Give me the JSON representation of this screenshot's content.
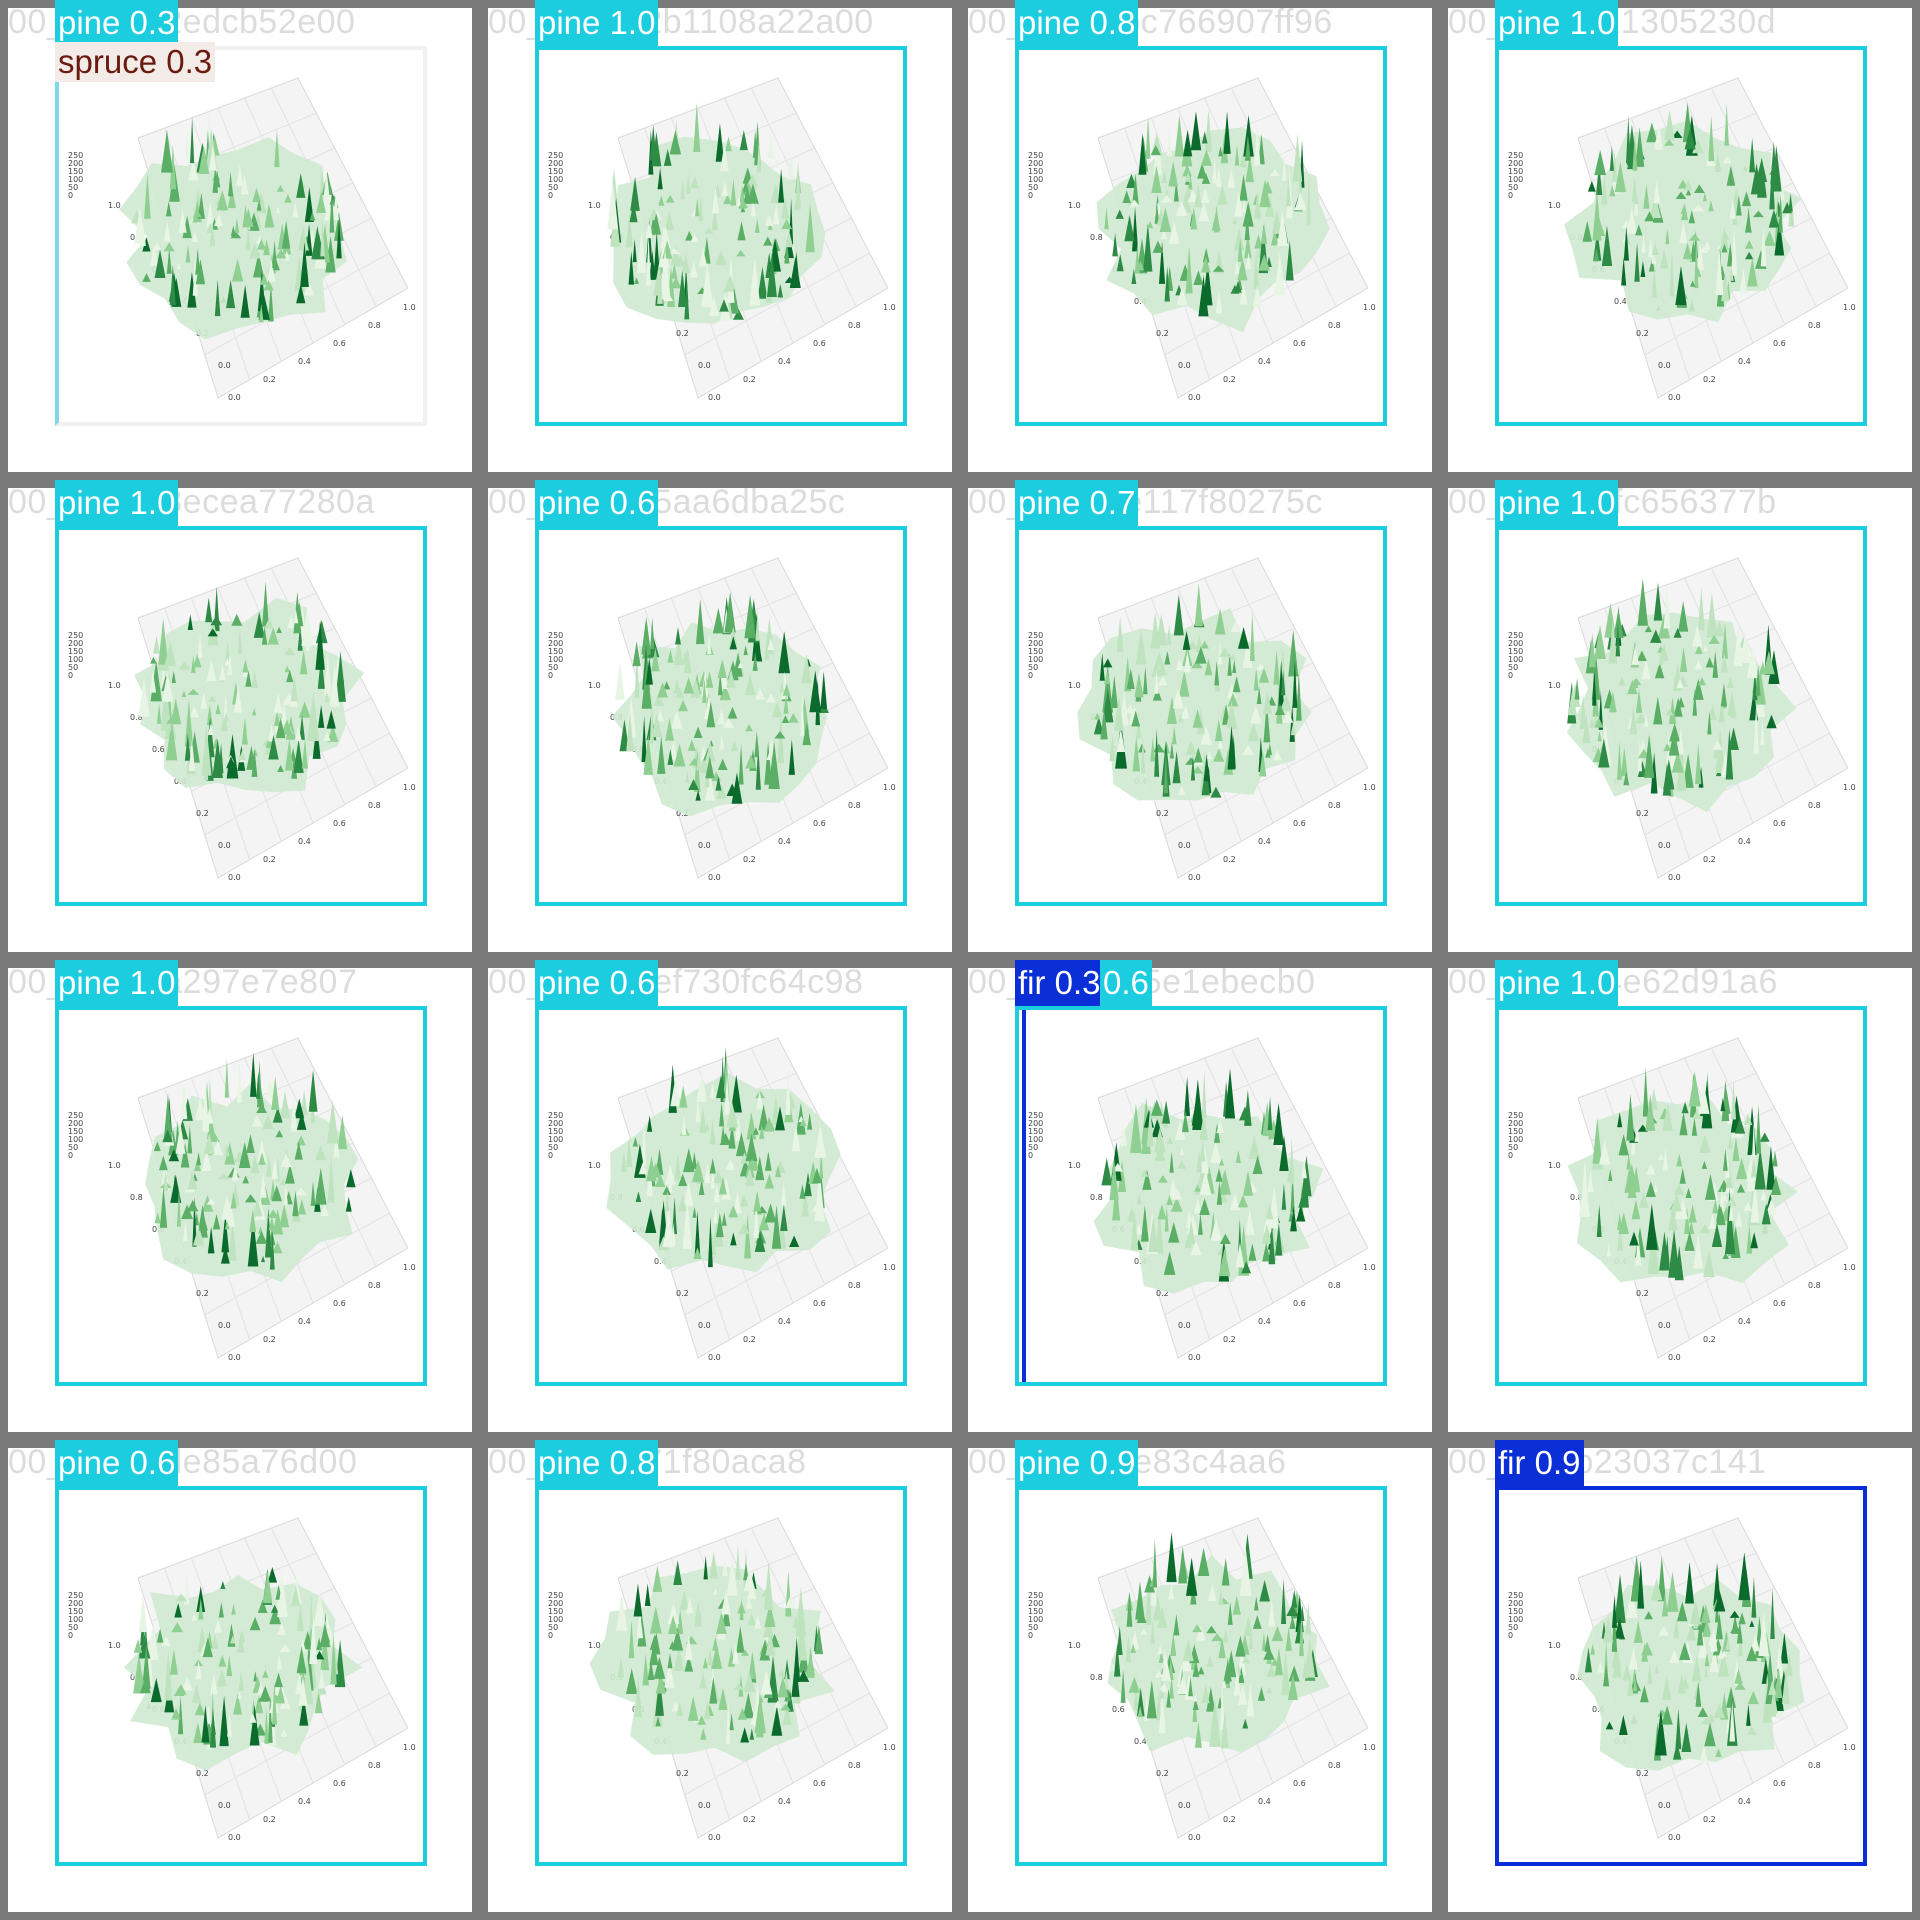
{
  "title": "",
  "colors": {
    "pine": "#1ccde0",
    "fir": "#0b2fd6",
    "spruce": "#f3ebe7",
    "background_frame": "#7a7a7a",
    "surface_light": "#e8f5e5",
    "surface_dark": "#0b6b2c"
  },
  "tiles": [
    {
      "filename": "00_e21d72edcb52e00",
      "detections": [
        {
          "class": "pine",
          "label": "pine 0.3",
          "score": 0.3
        },
        {
          "class": "spruce",
          "label": "spruce 0.3",
          "score": 0.3
        }
      ]
    },
    {
      "filename": "00_5836b2b1108a22a00",
      "detections": [
        {
          "class": "pine",
          "label": "pine 1.0",
          "score": 1.0
        }
      ]
    },
    {
      "filename": "00_ad30cbc766907ff96",
      "detections": [
        {
          "class": "pine",
          "label": "pine 0.8",
          "score": 0.8
        }
      ]
    },
    {
      "filename": "00_cd59a21305230d",
      "detections": [
        {
          "class": "pine",
          "label": "pine 1.0",
          "score": 1.0
        }
      ]
    },
    {
      "filename": "00_7e91e8ecea77280a",
      "detections": [
        {
          "class": "pine",
          "label": "pine 1.0",
          "score": 1.0
        }
      ]
    },
    {
      "filename": "00_866f0b5aa6dba25c",
      "detections": [
        {
          "class": "pine",
          "label": "pine 0.6",
          "score": 0.6
        }
      ]
    },
    {
      "filename": "00_79253e117f80275c",
      "detections": [
        {
          "class": "pine",
          "label": "pine 0.7",
          "score": 0.7
        }
      ]
    },
    {
      "filename": "00_a7f5b1fc656377b",
      "detections": [
        {
          "class": "pine",
          "label": "pine 1.0",
          "score": 1.0
        }
      ]
    },
    {
      "filename": "00_db38ba297e7e807",
      "detections": [
        {
          "class": "pine",
          "label": "pine 1.0",
          "score": 1.0
        }
      ]
    },
    {
      "filename": "00_f80449ef730fc64c98",
      "detections": [
        {
          "class": "pine",
          "label": "pine 0.6",
          "score": 0.6
        }
      ]
    },
    {
      "filename": "00_6654515e1ebecb0",
      "detections": [
        {
          "class": "fir",
          "label": "fir 0.3",
          "score": 0.3
        },
        {
          "class": "pine",
          "label": "0.6",
          "score": 0.6
        }
      ]
    },
    {
      "filename": "00_2d6b84e62d91a6",
      "detections": [
        {
          "class": "pine",
          "label": "pine 1.0",
          "score": 1.0
        }
      ]
    },
    {
      "filename": "00_21e29de85a76d00",
      "detections": [
        {
          "class": "pine",
          "label": "pine 0.6",
          "score": 0.6
        }
      ]
    },
    {
      "filename": "00_2d38671f80aca8",
      "detections": [
        {
          "class": "pine",
          "label": "pine 0.8",
          "score": 0.8
        }
      ]
    },
    {
      "filename": "00_a8f871e83c4aa6",
      "detections": [
        {
          "class": "pine",
          "label": "pine 0.9",
          "score": 0.9
        }
      ]
    },
    {
      "filename": "00_f195b23037c141",
      "detections": [
        {
          "class": "fir",
          "label": "fir 0.9",
          "score": 0.9
        }
      ]
    }
  ],
  "axis_ticks": {
    "z": [
      "250",
      "200",
      "150",
      "100",
      "50",
      "0"
    ],
    "y": [
      "1.0",
      "0.8",
      "0.6",
      "0.4",
      "0.2",
      "0.0"
    ],
    "x": [
      "0.0",
      "0.2",
      "0.4",
      "0.6",
      "0.8",
      "1.0"
    ]
  }
}
